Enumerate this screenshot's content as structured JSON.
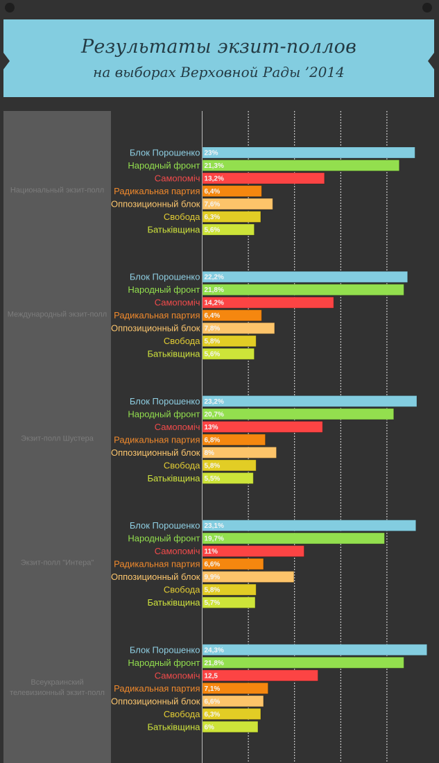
{
  "header": {
    "title": "Результаты экзит-поллов",
    "subtitle": "на выборах Верховной Рады ’2014"
  },
  "chart_data": {
    "type": "bar",
    "orientation": "horizontal",
    "title": "Результаты экзит-поллов на выборах Верховной Рады ’2014",
    "xlabel": "",
    "ylabel": "",
    "xlim": [
      0,
      25
    ],
    "grid": true,
    "grid_step": 5,
    "legend": "none",
    "categories": [
      "Блок Порошенко",
      "Народный фронт",
      "Самопоміч",
      "Радикальная партия",
      "Оппозиционный блок",
      "Свобода",
      "Батьківщина"
    ],
    "category_colors": [
      "#83cde0",
      "#93df4e",
      "#fc4444",
      "#f5870f",
      "#fdc46a",
      "#e2cd25",
      "#cde439"
    ],
    "label_colors": [
      "#8fcfe3",
      "#93df4e",
      "#f24b4b",
      "#f0892c",
      "#fcc66e",
      "#e3cd34",
      "#cfe33d"
    ],
    "groups": [
      {
        "name": "Национальный экзит-полл",
        "values": [
          23,
          21.3,
          13.2,
          6.4,
          7.6,
          6.3,
          5.6
        ],
        "value_labels": [
          "23%",
          "21,3%",
          "13,2%",
          "6,4%",
          "7,6%",
          "6,3%",
          "5,6%"
        ]
      },
      {
        "name": "Международный экзит-полл",
        "values": [
          22.2,
          21.8,
          14.2,
          6.4,
          7.8,
          5.8,
          5.6
        ],
        "value_labels": [
          "22,2%",
          "21,8%",
          "14,2%",
          "6,4%",
          "7,8%",
          "5,8%",
          "5,6%"
        ]
      },
      {
        "name": "Экзит-полл Шустера",
        "values": [
          23.2,
          20.7,
          13,
          6.8,
          8,
          5.8,
          5.5
        ],
        "value_labels": [
          "23,2%",
          "20,7%",
          "13%",
          "6,8%",
          "8%",
          "5,8%",
          "5,5%"
        ]
      },
      {
        "name": "Экзит-полл \"Интера\"",
        "values": [
          23.1,
          19.7,
          11,
          6.6,
          9.9,
          5.8,
          5.7
        ],
        "value_labels": [
          "23,1%",
          "19,7%",
          "11%",
          "6,6%",
          "9,9%",
          "5,8%",
          "5,7%"
        ]
      },
      {
        "name": "Всеукраинский телевизионный экзит-полл",
        "values": [
          24.3,
          21.8,
          12.5,
          7.1,
          6.6,
          6.3,
          6
        ],
        "value_labels": [
          "24,3%",
          "21,8%",
          "12,5",
          "7,1%",
          "6,6%",
          "6,3%",
          "6%"
        ]
      }
    ]
  }
}
